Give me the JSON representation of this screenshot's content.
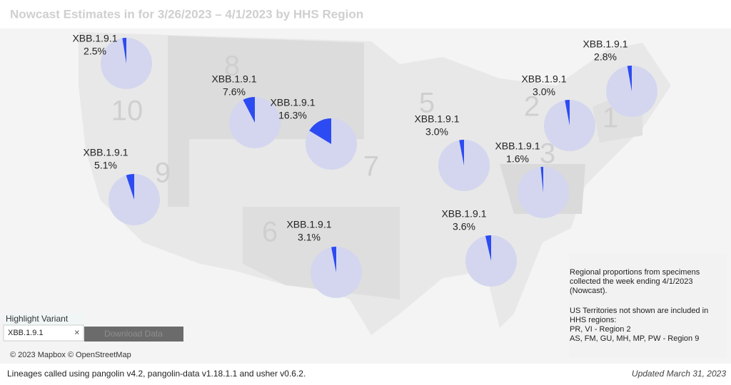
{
  "title": "Nowcast Estimates in for 3/26/2023 – 4/1/2023 by HHS Region",
  "regions": [
    {
      "number": "10",
      "variant": "XBB.1.9.1",
      "value": 2.5,
      "value_label": "2.5%"
    },
    {
      "number": "8",
      "variant": "XBB.1.9.1",
      "value": 7.6,
      "value_label": "7.6%"
    },
    {
      "number": "7",
      "variant": "XBB.1.9.1",
      "value": 16.3,
      "value_label": "16.3%"
    },
    {
      "number": "5",
      "variant": "XBB.1.9.1",
      "value": 3.0,
      "value_label": "3.0%"
    },
    {
      "number": "2",
      "variant": "XBB.1.9.1",
      "value": 3.0,
      "value_label": "3.0%"
    },
    {
      "number": "1",
      "variant": "XBB.1.9.1",
      "value": 2.8,
      "value_label": "2.8%"
    },
    {
      "number": "3",
      "variant": "XBB.1.9.1",
      "value": 1.6,
      "value_label": "1.6%"
    },
    {
      "number": "9",
      "variant": "XBB.1.9.1",
      "value": 5.1,
      "value_label": "5.1%"
    },
    {
      "number": "6",
      "variant": "XBB.1.9.1",
      "value": 3.1,
      "value_label": "3.1%"
    },
    {
      "variant": "XBB.1.9.1",
      "value": 3.6,
      "value_label": "3.6%"
    }
  ],
  "highlight": {
    "label": "Highlight Variant",
    "input": "XBB.1.9.1",
    "button": "Download Data"
  },
  "attribution": "© 2023 Mapbox © OpenStreetMap",
  "info": [
    "Regional proportions from specimens",
    "collected the week ending 4/1/2023",
    "(Nowcast).",
    "US Territories not shown are included in",
    "HHS regions:",
    "PR, VI - Region 2",
    "AS, FM, GU, MH, MP, PW - Region 9"
  ],
  "footer": {
    "left": "Lineages called using pangolin v4.2, pangolin-data v1.18.1.1 and usher v0.6.2.",
    "right": "Updated March 31, 2023"
  }
}
